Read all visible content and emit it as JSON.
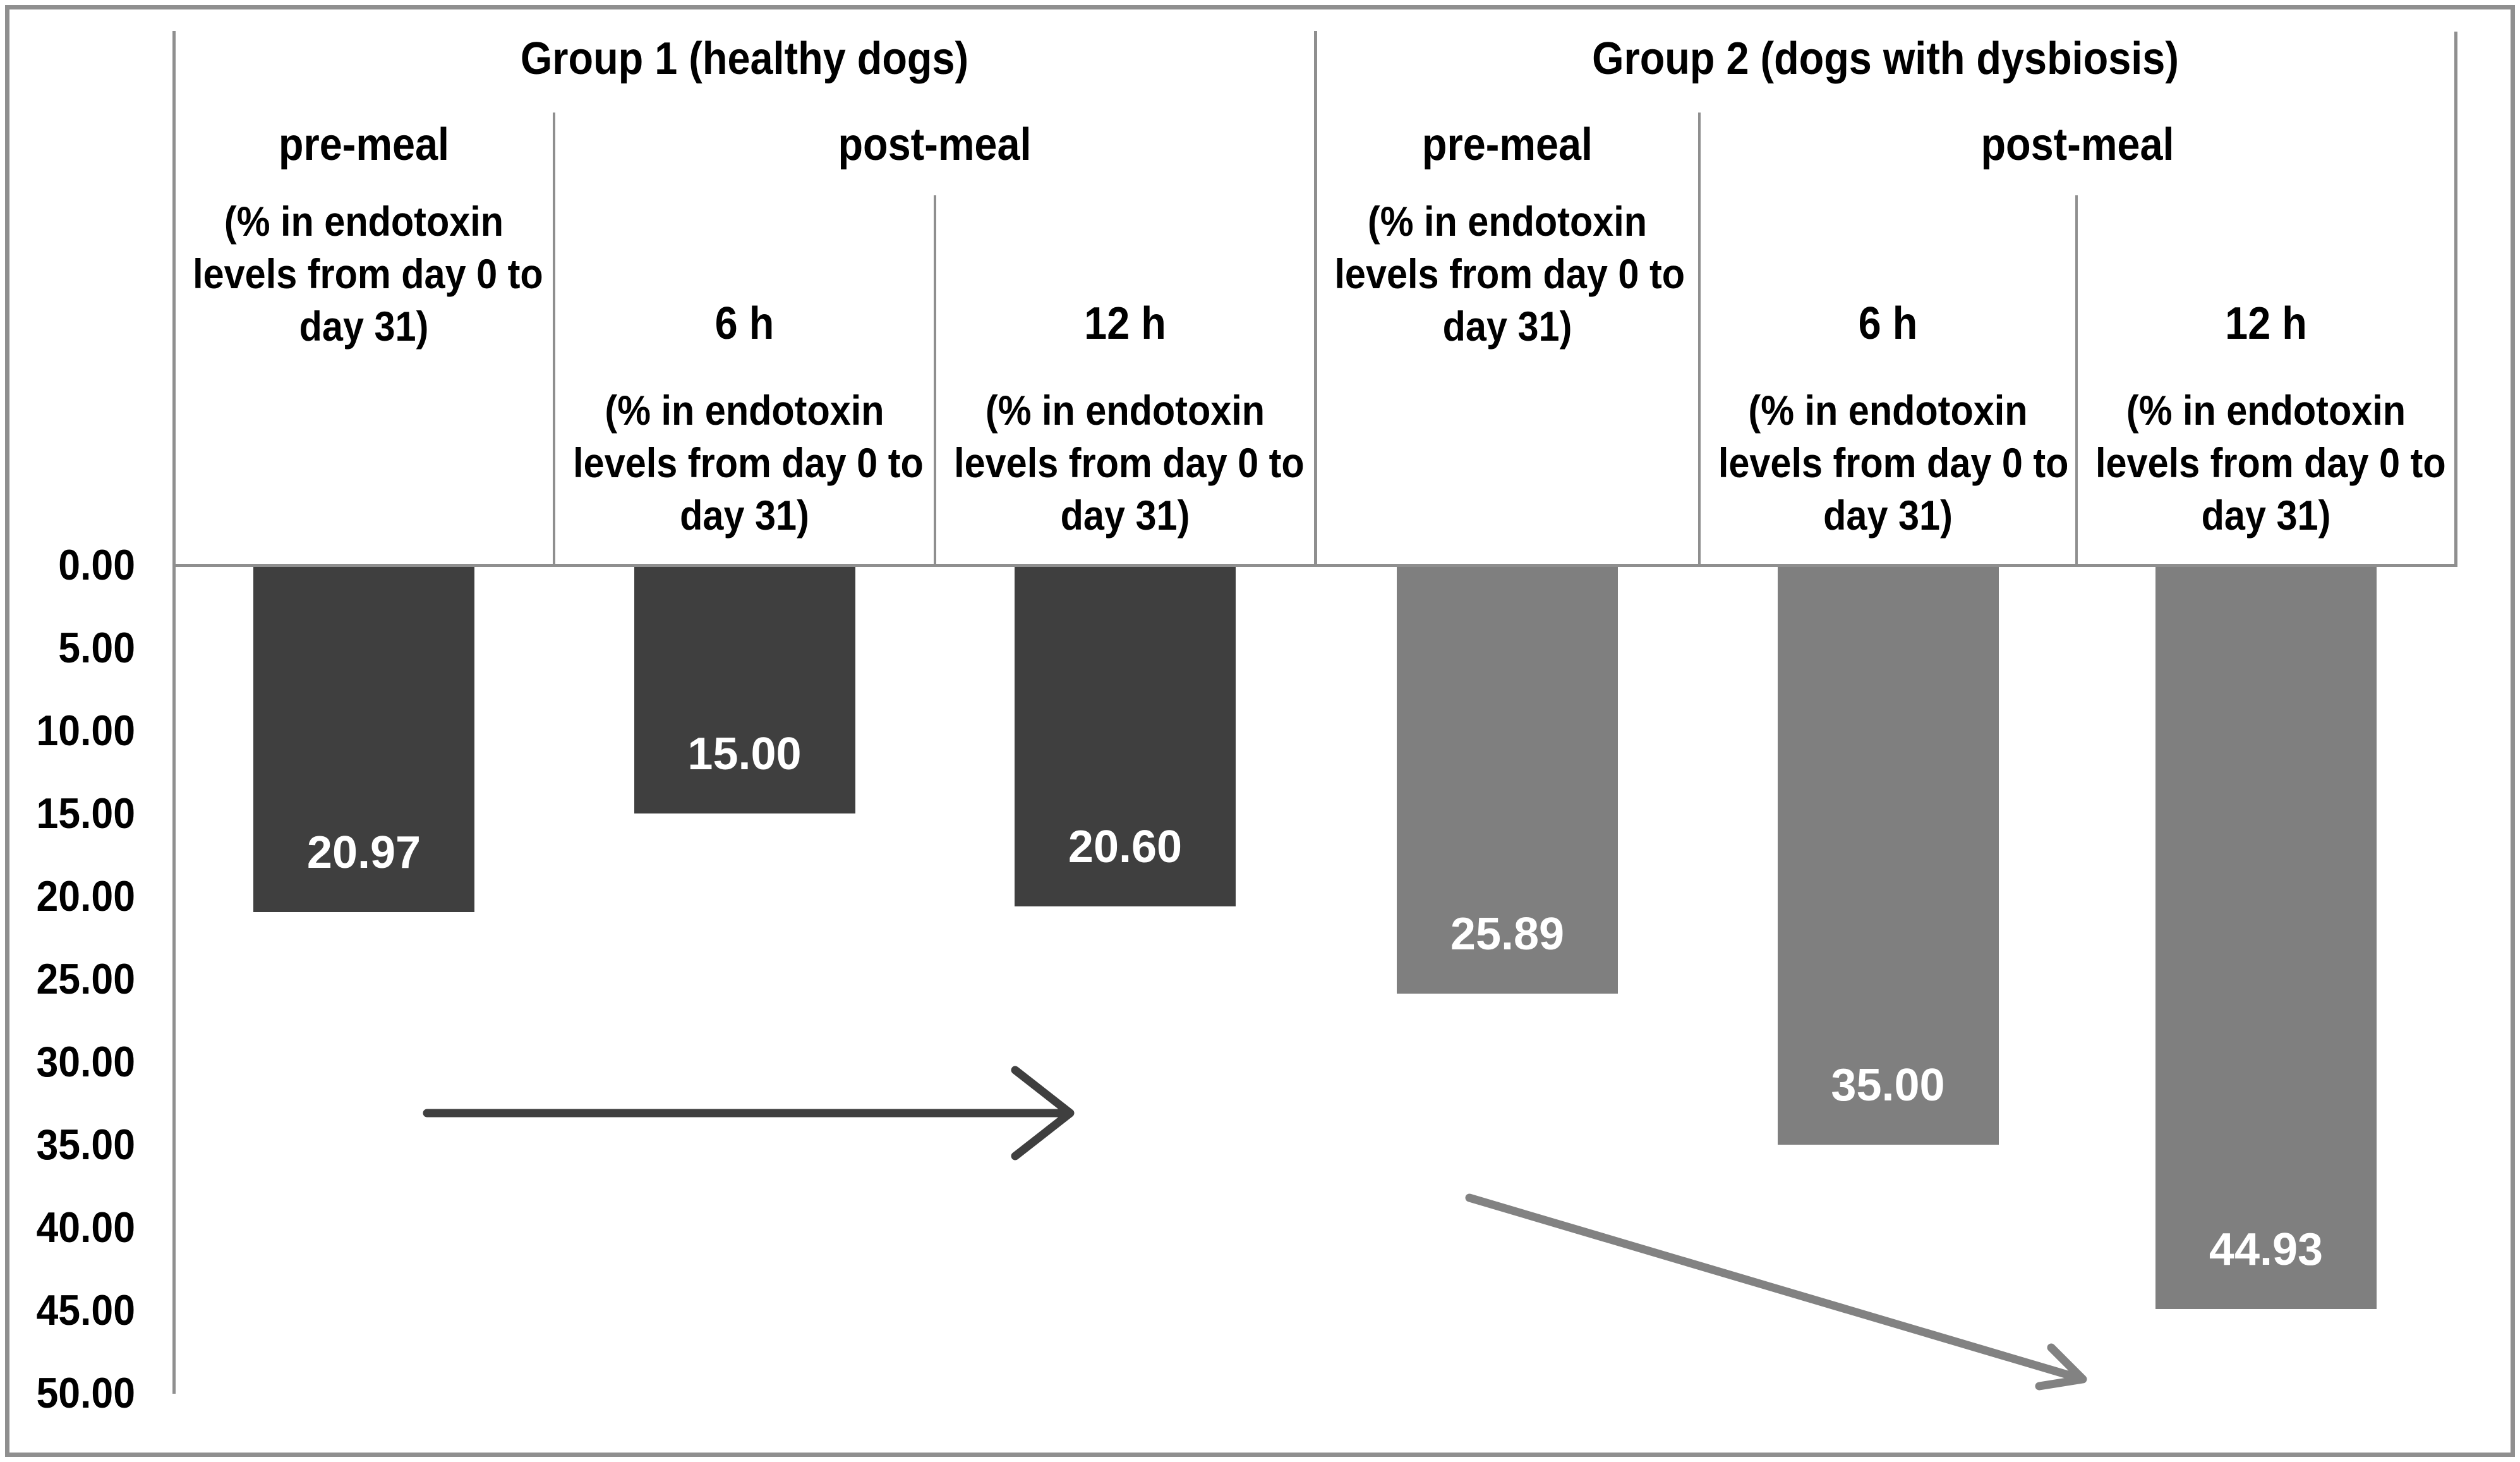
{
  "chart_data": {
    "type": "bar",
    "direction": "downward-from-zero",
    "title": "",
    "xlabel": "",
    "ylabel": "",
    "grid": "off",
    "legend": "none",
    "value_axis": {
      "min": 0,
      "max": 50,
      "tick_interval": 5,
      "tick_labels": [
        "0.00",
        "5.00",
        "10.00",
        "15.00",
        "20.00",
        "25.00",
        "30.00",
        "35.00",
        "40.00",
        "45.00",
        "50.00"
      ]
    },
    "column_labels": {
      "pre_meal": "pre-meal",
      "post_meal": "post-meal",
      "six_h": "6 h",
      "twelve_h": "12 h"
    },
    "subnote": "(% in endotoxin levels from day 0 to day 31)",
    "subnote_lines": [
      "(% in endotoxin",
      "levels from day 0 to",
      "day 31)"
    ],
    "groups": [
      {
        "label": "Group 1 (healthy dogs)",
        "bar_color": "#3f3f3f",
        "bars": [
          {
            "timepoint": "pre-meal",
            "value": 20.97,
            "label": "20.97"
          },
          {
            "timepoint": "post-meal 6 h",
            "value": 15.0,
            "label": "15.00"
          },
          {
            "timepoint": "post-meal 12 h",
            "value": 20.6,
            "label": "20.60"
          }
        ]
      },
      {
        "label": "Group 2 (dogs with dysbiosis)",
        "bar_color": "#7f7f7f",
        "bars": [
          {
            "timepoint": "pre-meal",
            "value": 25.89,
            "label": "25.89"
          },
          {
            "timepoint": "post-meal 6 h",
            "value": 35.0,
            "label": "35.00"
          },
          {
            "timepoint": "post-meal 12 h",
            "value": 44.93,
            "label": "44.93"
          }
        ]
      }
    ],
    "annotations": [
      {
        "type": "arrow",
        "group": "Group 1 (healthy dogs)",
        "direction": "horizontal-right",
        "color": "#3f3f3f"
      },
      {
        "type": "arrow",
        "group": "Group 2 (dogs with dysbiosis)",
        "direction": "diagonal-down-right",
        "color": "#828282"
      }
    ]
  },
  "colors": {
    "background": "#ffffff",
    "structural_lines": "#8f8f8f",
    "text": "#000000",
    "bar_value_text": "#ffffff",
    "bar_group1": "#3f3f3f",
    "bar_group2": "#7f7f7f"
  }
}
